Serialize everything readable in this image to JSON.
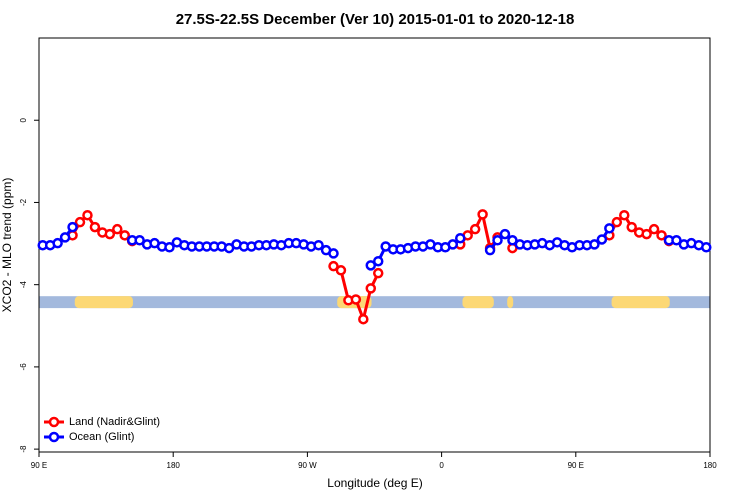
{
  "chart_data": {
    "type": "line",
    "title": "27.5S-22.5S December (Ver 10)   2015-01-01 to 2020-12-18",
    "x_label": "Longitude (deg E)",
    "y_label": "XCO2 - MLO trend (ppm)",
    "xlim": [
      90,
      540
    ],
    "ylim": [
      -8.07,
      2.0
    ],
    "xticks": [
      {
        "value": 90,
        "label": "90 E"
      },
      {
        "value": 180,
        "label": "180"
      },
      {
        "value": 270,
        "label": "90 W"
      },
      {
        "value": 360,
        "label": "0"
      },
      {
        "value": 450,
        "label": "90 E"
      },
      {
        "value": 540,
        "label": "180"
      }
    ],
    "yticks": [
      0,
      -2,
      -4,
      -6,
      -8
    ],
    "legend": "bottom-left",
    "mask_band": {
      "ylim": [
        -4.57,
        -4.28
      ],
      "color": "#a3b9dd",
      "land_color": "#fcd875",
      "land": [
        [
          114,
          153
        ],
        [
          290,
          313
        ],
        [
          374,
          395
        ],
        [
          404,
          408
        ],
        [
          474,
          513
        ]
      ]
    },
    "x": [
      92.5,
      97.5,
      102.5,
      107.5,
      112.5,
      117.5,
      122.5,
      127.5,
      132.5,
      137.5,
      142.5,
      147.5,
      152.5,
      157.5,
      162.5,
      167.5,
      172.5,
      177.5,
      182.5,
      187.5,
      192.5,
      197.5,
      202.5,
      207.5,
      212.5,
      217.5,
      222.5,
      227.5,
      232.5,
      237.5,
      242.5,
      247.5,
      252.5,
      257.5,
      262.5,
      267.5,
      272.5,
      277.5,
      282.5,
      287.5,
      292.5,
      297.5,
      302.5,
      307.5,
      312.5,
      317.5,
      322.5,
      327.5,
      332.5,
      337.5,
      342.5,
      347.5,
      352.5,
      357.5,
      362.5,
      367.5,
      372.5,
      377.5,
      382.5,
      387.5,
      392.5,
      397.5,
      402.5,
      407.5,
      412.5,
      417.5,
      422.5,
      427.5,
      432.5,
      437.5,
      442.5,
      447.5,
      452.5,
      457.5,
      462.5,
      467.5,
      472.5,
      477.5,
      482.5,
      487.5,
      492.5,
      497.5,
      502.5,
      507.5,
      512.5,
      517.5,
      522.5,
      527.5,
      532.5,
      537.5
    ],
    "series": [
      {
        "name": "Land (Nadir&Glint)",
        "color": "#ff0000",
        "values": [
          null,
          null,
          null,
          null,
          -2.8,
          -2.48,
          -2.31,
          -2.6,
          -2.73,
          -2.77,
          -2.65,
          -2.8,
          -2.94,
          null,
          null,
          null,
          null,
          null,
          null,
          null,
          null,
          null,
          null,
          null,
          null,
          null,
          null,
          null,
          null,
          null,
          null,
          null,
          null,
          null,
          null,
          null,
          null,
          null,
          null,
          -3.55,
          -3.65,
          -4.38,
          -4.36,
          -4.84,
          -4.09,
          -3.72,
          null,
          null,
          null,
          null,
          null,
          null,
          null,
          null,
          null,
          null,
          -3.02,
          -2.8,
          -2.65,
          -2.29,
          -3.11,
          -2.85,
          null,
          -3.11,
          null,
          null,
          null,
          null,
          null,
          null,
          null,
          null,
          null,
          null,
          null,
          null,
          -2.8,
          -2.48,
          -2.31,
          -2.6,
          -2.73,
          -2.77,
          -2.65,
          -2.8,
          -2.94,
          null,
          null,
          null,
          null,
          null
        ]
      },
      {
        "name": "Ocean (Glint)",
        "color": "#0000ff",
        "values": [
          -3.04,
          -3.04,
          -2.99,
          -2.85,
          -2.6,
          null,
          null,
          null,
          null,
          null,
          null,
          null,
          -2.92,
          -2.92,
          -3.02,
          -2.99,
          -3.07,
          -3.09,
          -2.97,
          -3.04,
          -3.07,
          -3.07,
          -3.07,
          -3.07,
          -3.07,
          -3.11,
          -3.02,
          -3.07,
          -3.07,
          -3.04,
          -3.04,
          -3.02,
          -3.04,
          -2.99,
          -2.99,
          -3.02,
          -3.07,
          -3.04,
          -3.16,
          -3.24,
          null,
          null,
          null,
          null,
          -3.53,
          -3.43,
          -3.07,
          -3.14,
          -3.14,
          -3.11,
          -3.07,
          -3.07,
          -3.02,
          -3.09,
          -3.09,
          -3.02,
          -2.87,
          null,
          null,
          null,
          -3.16,
          -2.92,
          -2.77,
          -2.92,
          -3.02,
          -3.04,
          -3.02,
          -2.99,
          -3.04,
          -2.97,
          -3.04,
          -3.09,
          -3.04,
          -3.04,
          -3.02,
          -2.9,
          -2.63,
          null,
          null,
          null,
          null,
          null,
          null,
          null,
          -2.92,
          -2.92,
          -3.02,
          -2.99,
          -3.04,
          -3.09
        ]
      }
    ]
  }
}
